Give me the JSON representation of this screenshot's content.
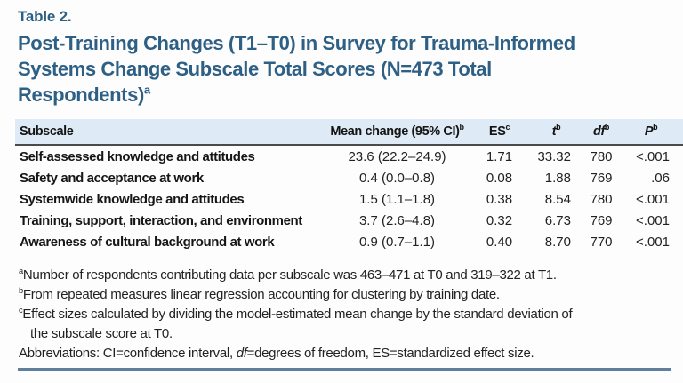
{
  "page": {
    "table_label": "Table 2.",
    "title_lines": [
      "Post-Training Changes (T1–T0) in Survey for Trauma-Informed",
      "Systems Change Subscale Total Scores (N=473 Total",
      "Respondents)"
    ],
    "title_superscript": "a"
  },
  "table": {
    "headers": [
      {
        "text": "Subscale",
        "sup": ""
      },
      {
        "text": "Mean change (95% CI)",
        "sup": "b"
      },
      {
        "text": "ES",
        "sup": "c"
      },
      {
        "text": "t",
        "sup": "b"
      },
      {
        "text": "df",
        "sup": "b"
      },
      {
        "text": "P",
        "sup": "b"
      }
    ],
    "rows": [
      {
        "subscale": "Self-assessed knowledge and attitudes",
        "mean_change": "23.6 (22.2–24.9)",
        "es": "1.71",
        "t": "33.32",
        "df": "780",
        "p": "<.001"
      },
      {
        "subscale": "Safety and acceptance at work",
        "mean_change": "0.4 (0.0–0.8)",
        "es": "0.08",
        "t": "1.88",
        "df": "769",
        "p": ".06"
      },
      {
        "subscale": "Systemwide knowledge and attitudes",
        "mean_change": "1.5 (1.1–1.8)",
        "es": "0.38",
        "t": "8.54",
        "df": "780",
        "p": "<.001"
      },
      {
        "subscale": "Training, support, interaction, and environment",
        "mean_change": "3.7 (2.6–4.8)",
        "es": "0.32",
        "t": "6.73",
        "df": "769",
        "p": "<.001"
      },
      {
        "subscale": "Awareness of cultural background at work",
        "mean_change": "0.9 (0.7–1.1)",
        "es": "0.40",
        "t": "8.70",
        "df": "770",
        "p": "<.001"
      }
    ]
  },
  "footnotes": [
    {
      "sup": "a",
      "text": "Number of respondents contributing data per subscale was 463–471 at T0 and 319–322 at T1.",
      "text2": ""
    },
    {
      "sup": "b",
      "text": "From repeated measures linear regression accounting for clustering by training date.",
      "text2": ""
    },
    {
      "sup": "c",
      "text": "Effect sizes calculated by dividing the model-estimated mean change by the standard deviation of",
      "text2": "the subscale score at T0."
    }
  ],
  "abbreviations": {
    "pre": "Abbreviations: CI=confidence interval, ",
    "italic_term": "df",
    "post": "=degrees of freedom, ES=standardized effect size."
  },
  "colors": {
    "title_blue": "#2e5f84",
    "header_band": "#deeaf5",
    "header_underline": "#4a4a4a",
    "bottom_rule": "#5f7f9d"
  }
}
